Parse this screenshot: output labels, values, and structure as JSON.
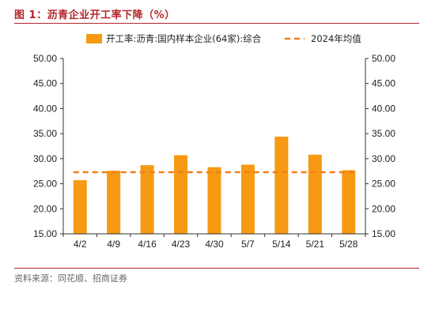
{
  "header": {
    "title": "图 1：沥青企业开工率下降（%）"
  },
  "footer": {
    "source": "资料来源：同花顺、招商证券"
  },
  "colors": {
    "accent": "#b4262d",
    "bar": "#f59a12",
    "avg_line": "#f07f18"
  },
  "chart_data": {
    "type": "bar",
    "categories": [
      "4/2",
      "4/9",
      "4/16",
      "4/23",
      "4/30",
      "5/7",
      "5/14",
      "5/21",
      "5/28"
    ],
    "series": [
      {
        "name": "开工率:沥青:国内样本企业(64家):综合",
        "values": [
          25.7,
          27.6,
          28.7,
          30.7,
          28.3,
          28.8,
          34.4,
          30.8,
          27.7
        ]
      }
    ],
    "reference_line": {
      "name": "2024年均值",
      "value": 27.3,
      "style": "dashed"
    },
    "ylim": [
      15,
      50
    ],
    "yticks": [
      "15.00",
      "20.00",
      "25.00",
      "30.00",
      "35.00",
      "40.00",
      "45.00",
      "50.00"
    ],
    "y2ticks": [
      "15.00",
      "20.00",
      "25.00",
      "30.00",
      "35.00",
      "40.00",
      "45.00",
      "50.00"
    ],
    "legend_position": "top",
    "grid": false,
    "xlabel": "",
    "ylabel": ""
  }
}
